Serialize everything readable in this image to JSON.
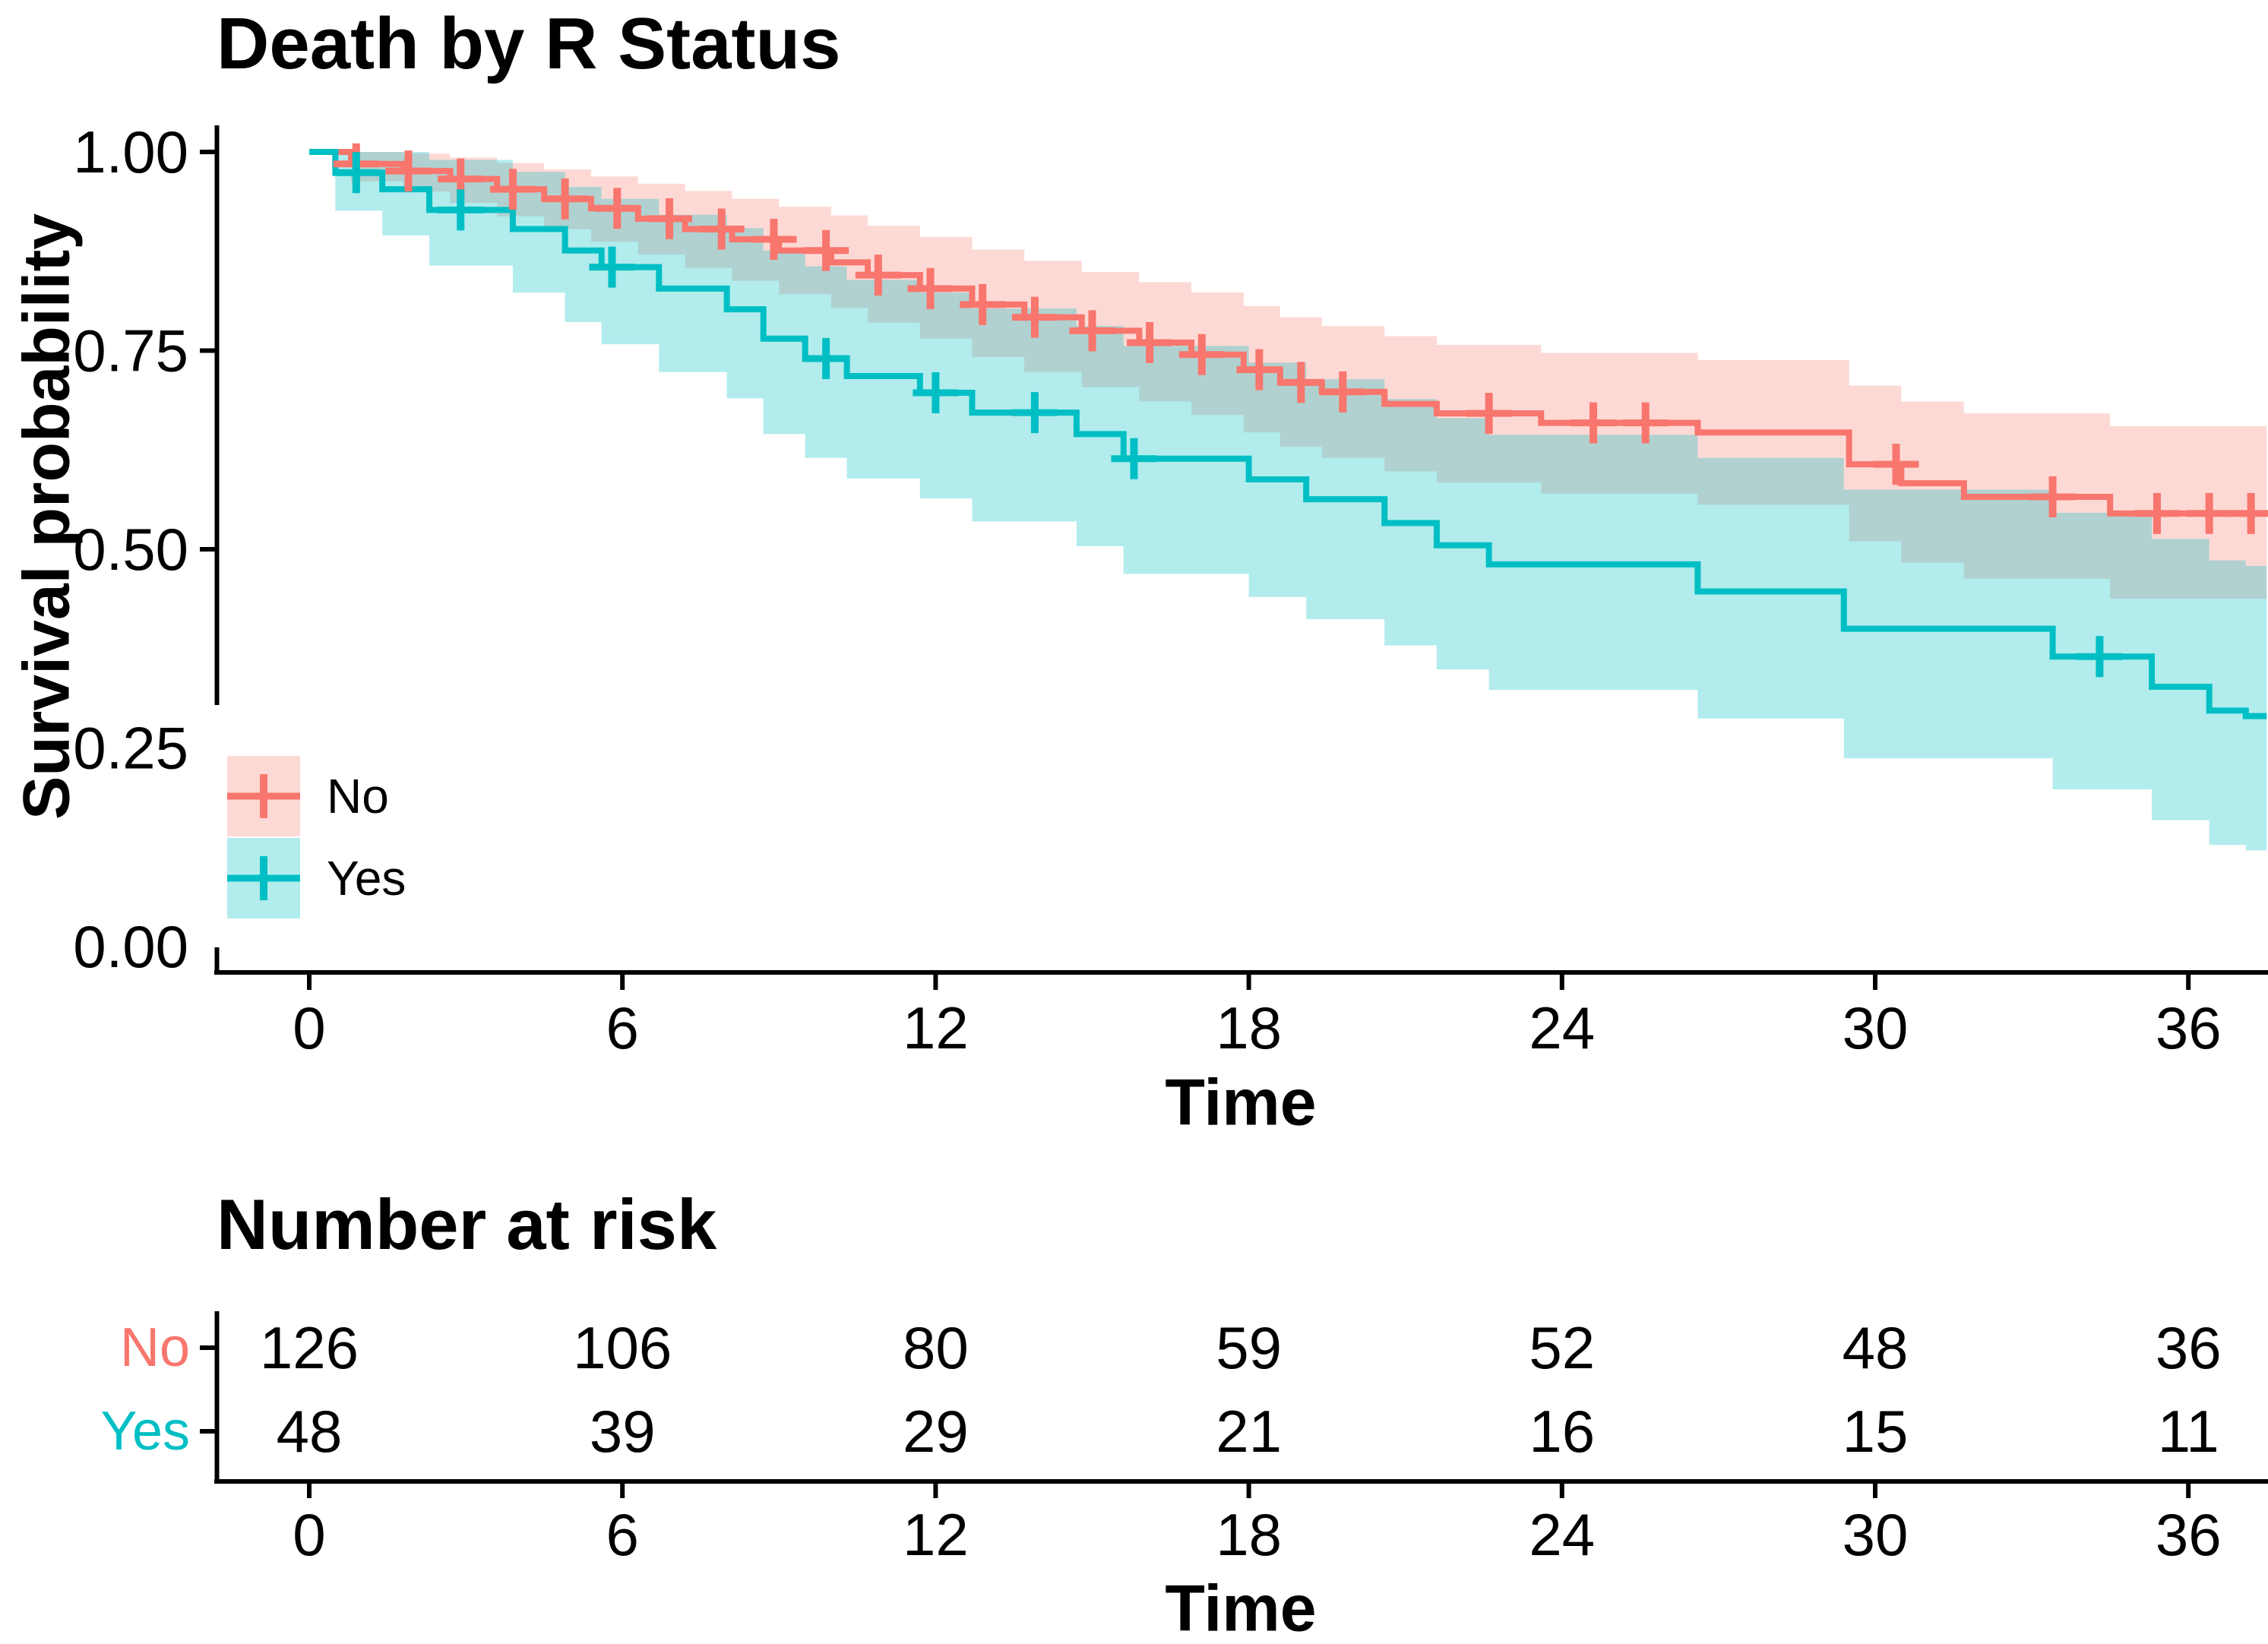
{
  "title": "Death by R Status",
  "axes": {
    "y_label": "Survival probability",
    "x_label": "Time",
    "y_ticks": [
      {
        "v": 1.0,
        "label": "1.00",
        "tick": true
      },
      {
        "v": 0.75,
        "label": "0.75",
        "tick": true
      },
      {
        "v": 0.5,
        "label": "0.50",
        "tick": true
      },
      {
        "v": 0.25,
        "label": "0.25",
        "tick": false
      },
      {
        "v": 0.0,
        "label": "0.00",
        "tick": false
      }
    ],
    "x_ticks": [
      0,
      6,
      12,
      18,
      24,
      30,
      36
    ]
  },
  "legend": {
    "items": [
      {
        "label": "No",
        "color": "#F8766D",
        "band": "rgba(248,118,109,0.28)"
      },
      {
        "label": "Yes",
        "color": "#00BFC4",
        "band": "rgba(0,191,196,0.30)"
      }
    ]
  },
  "risk_table": {
    "title": "Number at risk",
    "time_label": "Time",
    "x_ticks": [
      0,
      6,
      12,
      18,
      24,
      30,
      36
    ],
    "rows": [
      {
        "label": "No",
        "color": "#F8766D",
        "values": [
          126,
          106,
          80,
          59,
          52,
          48,
          36
        ]
      },
      {
        "label": "Yes",
        "color": "#00BFC4",
        "values": [
          48,
          39,
          29,
          21,
          16,
          15,
          11
        ]
      }
    ]
  },
  "chart_data": {
    "type": "line",
    "subtype": "kaplan-meier-step",
    "title": "Death by R Status",
    "xlabel": "Time",
    "ylabel": "Survival probability",
    "xlim": [
      0,
      37.5
    ],
    "ylim": [
      0,
      1
    ],
    "grid": false,
    "legend_position": "inside-left-bottom",
    "t_end": 37.5,
    "series": [
      {
        "name": "No",
        "color": "#F8766D",
        "band_color": "rgba(248,118,109,0.28)",
        "steps": [
          [
            0.0,
            1.0,
            1.0,
            1.0
          ],
          [
            0.8,
            0.985,
            0.963,
            1.0
          ],
          [
            1.8,
            0.976,
            0.95,
            0.998
          ],
          [
            2.7,
            0.966,
            0.936,
            0.993
          ],
          [
            3.6,
            0.953,
            0.919,
            0.986
          ],
          [
            4.5,
            0.941,
            0.903,
            0.978
          ],
          [
            5.4,
            0.929,
            0.887,
            0.969
          ],
          [
            6.3,
            0.916,
            0.871,
            0.96
          ],
          [
            7.2,
            0.903,
            0.854,
            0.951
          ],
          [
            8.1,
            0.89,
            0.838,
            0.941
          ],
          [
            9.0,
            0.876,
            0.821,
            0.931
          ],
          [
            10.0,
            0.861,
            0.804,
            0.92
          ],
          [
            10.7,
            0.845,
            0.785,
            0.907
          ],
          [
            11.7,
            0.828,
            0.765,
            0.893
          ],
          [
            12.7,
            0.808,
            0.742,
            0.877
          ],
          [
            13.7,
            0.792,
            0.723,
            0.863
          ],
          [
            14.8,
            0.775,
            0.704,
            0.849
          ],
          [
            15.9,
            0.76,
            0.686,
            0.836
          ],
          [
            16.9,
            0.745,
            0.669,
            0.823
          ],
          [
            17.9,
            0.726,
            0.647,
            0.806
          ],
          [
            18.6,
            0.71,
            0.629,
            0.792
          ],
          [
            19.4,
            0.698,
            0.615,
            0.781
          ],
          [
            20.6,
            0.683,
            0.598,
            0.768
          ],
          [
            21.6,
            0.671,
            0.584,
            0.757
          ],
          [
            23.6,
            0.659,
            0.57,
            0.747
          ],
          [
            26.6,
            0.647,
            0.556,
            0.738
          ],
          [
            29.5,
            0.607,
            0.51,
            0.706
          ],
          [
            30.5,
            0.583,
            0.483,
            0.686
          ],
          [
            31.7,
            0.566,
            0.463,
            0.671
          ],
          [
            34.5,
            0.545,
            0.438,
            0.655
          ]
        ],
        "censor_times": [
          0.9,
          1.9,
          2.9,
          3.9,
          4.9,
          5.9,
          6.9,
          7.9,
          8.9,
          9.9,
          10.9,
          11.9,
          12.9,
          13.9,
          15.0,
          16.1,
          17.1,
          18.2,
          19.0,
          19.8,
          22.6,
          24.6,
          25.6,
          30.4,
          33.4,
          35.4,
          36.4,
          37.2
        ]
      },
      {
        "name": "Yes",
        "color": "#00BFC4",
        "band_color": "rgba(0,191,196,0.30)",
        "steps": [
          [
            0.0,
            1.0,
            1.0,
            1.0
          ],
          [
            0.5,
            0.974,
            0.926,
            1.0
          ],
          [
            1.4,
            0.953,
            0.895,
            1.0
          ],
          [
            2.3,
            0.927,
            0.857,
            0.99
          ],
          [
            3.9,
            0.903,
            0.823,
            0.975
          ],
          [
            4.9,
            0.876,
            0.786,
            0.956
          ],
          [
            5.6,
            0.855,
            0.758,
            0.941
          ],
          [
            6.7,
            0.828,
            0.723,
            0.921
          ],
          [
            8.0,
            0.802,
            0.69,
            0.904
          ],
          [
            8.7,
            0.765,
            0.645,
            0.876
          ],
          [
            9.5,
            0.74,
            0.615,
            0.856
          ],
          [
            10.3,
            0.718,
            0.589,
            0.839
          ],
          [
            11.7,
            0.697,
            0.564,
            0.823
          ],
          [
            12.7,
            0.672,
            0.535,
            0.803
          ],
          [
            14.7,
            0.645,
            0.504,
            0.781
          ],
          [
            15.6,
            0.614,
            0.469,
            0.756
          ],
          [
            18.0,
            0.588,
            0.44,
            0.735
          ],
          [
            19.1,
            0.563,
            0.412,
            0.714
          ],
          [
            20.6,
            0.533,
            0.379,
            0.689
          ],
          [
            21.6,
            0.505,
            0.349,
            0.665
          ],
          [
            22.6,
            0.481,
            0.323,
            0.644
          ],
          [
            26.6,
            0.447,
            0.287,
            0.615
          ],
          [
            29.4,
            0.4,
            0.237,
            0.575
          ],
          [
            33.4,
            0.365,
            0.198,
            0.546
          ],
          [
            35.3,
            0.327,
            0.159,
            0.513
          ],
          [
            36.4,
            0.297,
            0.128,
            0.486
          ],
          [
            37.1,
            0.29,
            0.121,
            0.479
          ]
        ],
        "censor_times": [
          0.9,
          2.9,
          5.8,
          9.9,
          12.0,
          13.9,
          15.8,
          34.3
        ]
      }
    ]
  }
}
